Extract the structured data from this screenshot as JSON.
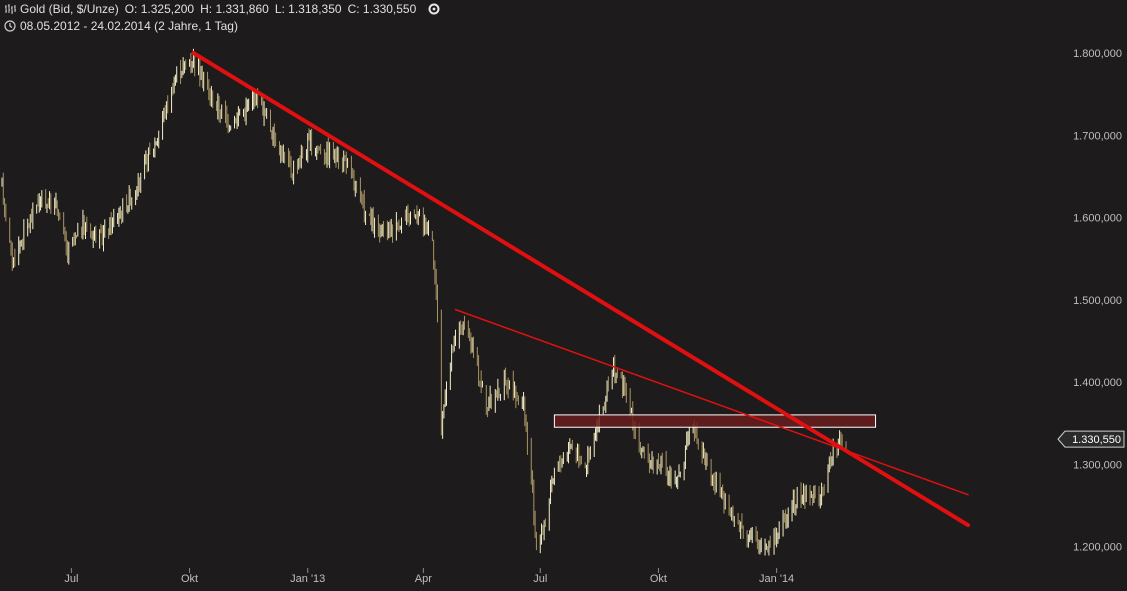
{
  "header": {
    "symbol": "Gold (Bid, $/Unze)",
    "open": "O: 1.325,200",
    "high": "H: 1.331,860",
    "low": "L: 1.318,350",
    "close": "C: 1.330,550",
    "range": "08.05.2012 - 24.02.2014 (2 Jahre, 1 Tag)"
  },
  "price_tag": "1.330,550",
  "chart_data": {
    "type": "ohlc",
    "title": "Gold (Bid, $/Unze)",
    "xlabel": "",
    "ylabel": "",
    "x_range": [
      "2012-05-08",
      "2014-02-24"
    ],
    "ylim": [
      1170,
      1840
    ],
    "y_ticks": [
      {
        "value": 1800,
        "label": "1.800,000"
      },
      {
        "value": 1700,
        "label": "1.700,000"
      },
      {
        "value": 1600,
        "label": "1.600,000"
      },
      {
        "value": 1500,
        "label": "1.500,000"
      },
      {
        "value": 1400,
        "label": "1.400,000"
      },
      {
        "value": 1300,
        "label": "1.300,000"
      },
      {
        "value": 1200,
        "label": "1.200,000"
      }
    ],
    "x_ticks": [
      {
        "date": "2012-07-01",
        "label": "Jul"
      },
      {
        "date": "2012-10-01",
        "label": "Okt"
      },
      {
        "date": "2013-01-01",
        "label": "Jan '13"
      },
      {
        "date": "2013-04-01",
        "label": "Apr"
      },
      {
        "date": "2013-07-01",
        "label": "Jul"
      },
      {
        "date": "2013-10-01",
        "label": "Okt"
      },
      {
        "date": "2014-01-01",
        "label": "Jan '14"
      }
    ],
    "price_path": [
      [
        "2012-05-08",
        1640
      ],
      [
        "2012-05-16",
        1545
      ],
      [
        "2012-05-25",
        1580
      ],
      [
        "2012-06-05",
        1620
      ],
      [
        "2012-06-20",
        1615
      ],
      [
        "2012-06-28",
        1555
      ],
      [
        "2012-07-10",
        1590
      ],
      [
        "2012-07-24",
        1575
      ],
      [
        "2012-08-10",
        1612
      ],
      [
        "2012-08-21",
        1635
      ],
      [
        "2012-09-06",
        1700
      ],
      [
        "2012-09-21",
        1775
      ],
      [
        "2012-10-04",
        1795
      ],
      [
        "2012-10-18",
        1745
      ],
      [
        "2012-10-31",
        1715
      ],
      [
        "2012-11-12",
        1730
      ],
      [
        "2012-11-23",
        1750
      ],
      [
        "2012-12-05",
        1700
      ],
      [
        "2012-12-20",
        1655
      ],
      [
        "2013-01-02",
        1690
      ],
      [
        "2013-01-15",
        1680
      ],
      [
        "2013-01-30",
        1670
      ],
      [
        "2013-02-15",
        1605
      ],
      [
        "2013-02-25",
        1580
      ],
      [
        "2013-03-15",
        1595
      ],
      [
        "2013-03-29",
        1600
      ],
      [
        "2013-04-08",
        1580
      ],
      [
        "2013-04-12",
        1480
      ],
      [
        "2013-04-15",
        1340
      ],
      [
        "2013-04-18",
        1390
      ],
      [
        "2013-04-24",
        1440
      ],
      [
        "2013-05-01",
        1470
      ],
      [
        "2013-05-10",
        1440
      ],
      [
        "2013-05-20",
        1370
      ],
      [
        "2013-06-05",
        1400
      ],
      [
        "2013-06-18",
        1370
      ],
      [
        "2013-06-24",
        1280
      ],
      [
        "2013-06-28",
        1200
      ],
      [
        "2013-07-05",
        1230
      ],
      [
        "2013-07-12",
        1290
      ],
      [
        "2013-07-25",
        1325
      ],
      [
        "2013-08-05",
        1300
      ],
      [
        "2013-08-12",
        1330
      ],
      [
        "2013-08-27",
        1415
      ],
      [
        "2013-09-05",
        1390
      ],
      [
        "2013-09-18",
        1310
      ],
      [
        "2013-10-02",
        1300
      ],
      [
        "2013-10-15",
        1275
      ],
      [
        "2013-10-28",
        1350
      ],
      [
        "2013-11-10",
        1290
      ],
      [
        "2013-11-25",
        1240
      ],
      [
        "2013-12-05",
        1225
      ],
      [
        "2013-12-19",
        1200
      ],
      [
        "2013-12-31",
        1210
      ],
      [
        "2014-01-10",
        1245
      ],
      [
        "2014-01-24",
        1265
      ],
      [
        "2014-02-05",
        1260
      ],
      [
        "2014-02-14",
        1320
      ],
      [
        "2014-02-24",
        1330
      ]
    ],
    "trendlines": [
      {
        "name": "major",
        "from": [
          "2012-10-04",
          1800
        ],
        "to": [
          "2014-05-30",
          1226
        ],
        "color": "#e01010",
        "width": 4
      },
      {
        "name": "minor",
        "from": [
          "2013-04-26",
          1488
        ],
        "to": [
          "2014-05-30",
          1263
        ],
        "color": "#e01010",
        "width": 1.5
      }
    ],
    "zone": {
      "from": [
        "2013-07-12",
        1345
      ],
      "to": [
        "2014-03-19",
        1360
      ],
      "fill": "#6b1c1c",
      "stroke": "#ffffff"
    },
    "last_price": 1330.55,
    "grid": false,
    "legend": "none",
    "colors": {
      "up": "#f4f0c8",
      "down": "#a89464",
      "background": "#1d1b1b",
      "tag_bg": "#2b2b2b"
    }
  }
}
